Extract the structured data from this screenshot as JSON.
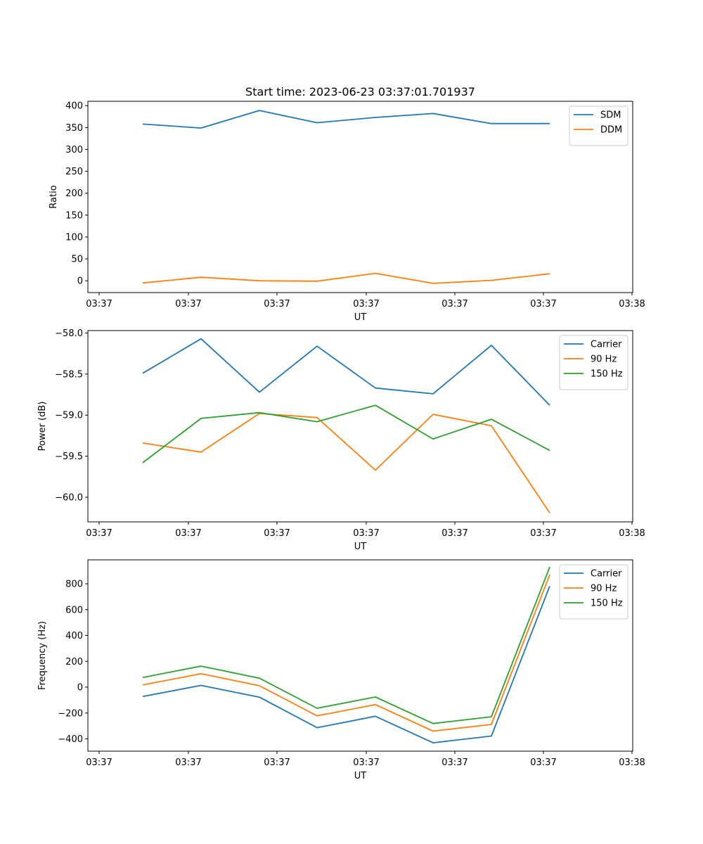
{
  "chart_data": [
    {
      "type": "line",
      "title": "Start time: 2023-06-23 03:37:01.701937",
      "xlabel": "UT",
      "ylabel": "Ratio",
      "x_tick_labels": [
        "03:37",
        "03:37",
        "03:37",
        "03:37",
        "03:37",
        "03:37",
        "03:37"
      ],
      "x_tick_label_last": "03:38",
      "y_ticks": [
        0,
        50,
        100,
        150,
        200,
        250,
        300,
        350,
        400
      ],
      "y_tick_labels": [
        "0",
        "50",
        "100",
        "150",
        "200",
        "250",
        "300",
        "350",
        "400"
      ],
      "ylim": [
        -27,
        410
      ],
      "grid": false,
      "legend": "upper right",
      "series": [
        {
          "name": "SDM",
          "color": "#1f77b4",
          "values": [
            358,
            349,
            389,
            361,
            373,
            382,
            359,
            359
          ]
        },
        {
          "name": "DDM",
          "color": "#ff7f0e",
          "values": [
            -5,
            8,
            0,
            -1,
            17,
            -6,
            1,
            16
          ]
        }
      ]
    },
    {
      "type": "line",
      "title": "",
      "xlabel": "UT",
      "ylabel": "Power (dB)",
      "x_tick_labels": [
        "03:37",
        "03:37",
        "03:37",
        "03:37",
        "03:37",
        "03:37",
        "03:37"
      ],
      "x_tick_label_last": "03:38",
      "y_ticks": [
        -60.0,
        -59.5,
        -59.0,
        -58.5,
        -58.0
      ],
      "y_tick_labels": [
        "−60.0",
        "−59.5",
        "−59.0",
        "−58.5",
        "−58.0"
      ],
      "ylim": [
        -60.3,
        -57.97
      ],
      "grid": false,
      "legend": "upper right",
      "series": [
        {
          "name": "Carrier",
          "color": "#1f77b4",
          "values": [
            -58.49,
            -58.07,
            -58.72,
            -58.16,
            -58.67,
            -58.74,
            -58.15,
            -58.88
          ]
        },
        {
          "name": "90 Hz",
          "color": "#ff7f0e",
          "values": [
            -59.34,
            -59.45,
            -58.98,
            -59.03,
            -59.67,
            -58.99,
            -59.13,
            -60.19
          ]
        },
        {
          "name": "150 Hz",
          "color": "#2ca02c",
          "values": [
            -59.58,
            -59.04,
            -58.97,
            -59.08,
            -58.88,
            -59.29,
            -59.05,
            -59.43
          ]
        }
      ]
    },
    {
      "type": "line",
      "title": "",
      "xlabel": "UT",
      "ylabel": "Frequency (Hz)",
      "x_tick_labels": [
        "03:37",
        "03:37",
        "03:37",
        "03:37",
        "03:37",
        "03:37",
        "03:37"
      ],
      "x_tick_label_last": "03:38",
      "y_ticks": [
        -400,
        -200,
        0,
        200,
        400,
        600,
        800
      ],
      "y_tick_labels": [
        "−400",
        "−200",
        "0",
        "200",
        "400",
        "600",
        "800"
      ],
      "ylim": [
        -495,
        985
      ],
      "grid": false,
      "legend": "upper right",
      "series": [
        {
          "name": "Carrier",
          "color": "#1f77b4",
          "values": [
            -72,
            14,
            -77,
            -313,
            -225,
            -430,
            -378,
            782
          ]
        },
        {
          "name": "90 Hz",
          "color": "#ff7f0e",
          "values": [
            17,
            104,
            11,
            -222,
            -135,
            -340,
            -288,
            870
          ]
        },
        {
          "name": "150 Hz",
          "color": "#2ca02c",
          "values": [
            75,
            163,
            70,
            -163,
            -76,
            -281,
            -229,
            930
          ]
        }
      ]
    }
  ]
}
